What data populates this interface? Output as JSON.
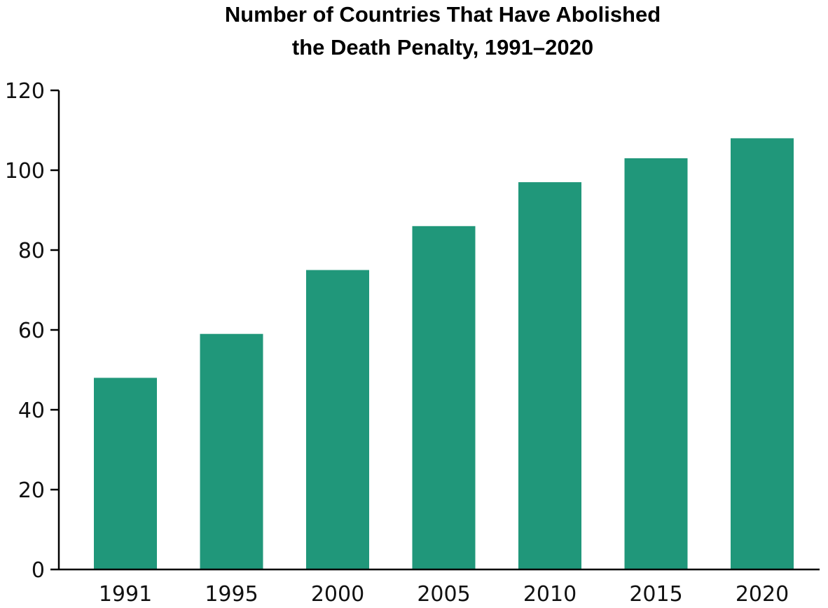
{
  "chart_data": {
    "type": "bar",
    "title_lines": [
      "Number of Countries That Have Abolished",
      "the Death Penalty, 1991–2020"
    ],
    "xlabel": "",
    "ylabel": "",
    "categories": [
      "1991",
      "1995",
      "2000",
      "2005",
      "2010",
      "2015",
      "2020"
    ],
    "values": [
      48,
      59,
      75,
      86,
      97,
      103,
      108
    ],
    "ylim": [
      0,
      120
    ],
    "yticks": [
      0,
      20,
      40,
      60,
      80,
      100,
      120
    ],
    "grid": false,
    "legend": "none",
    "bar_color": "#20977a",
    "axis_color": "#000000"
  }
}
